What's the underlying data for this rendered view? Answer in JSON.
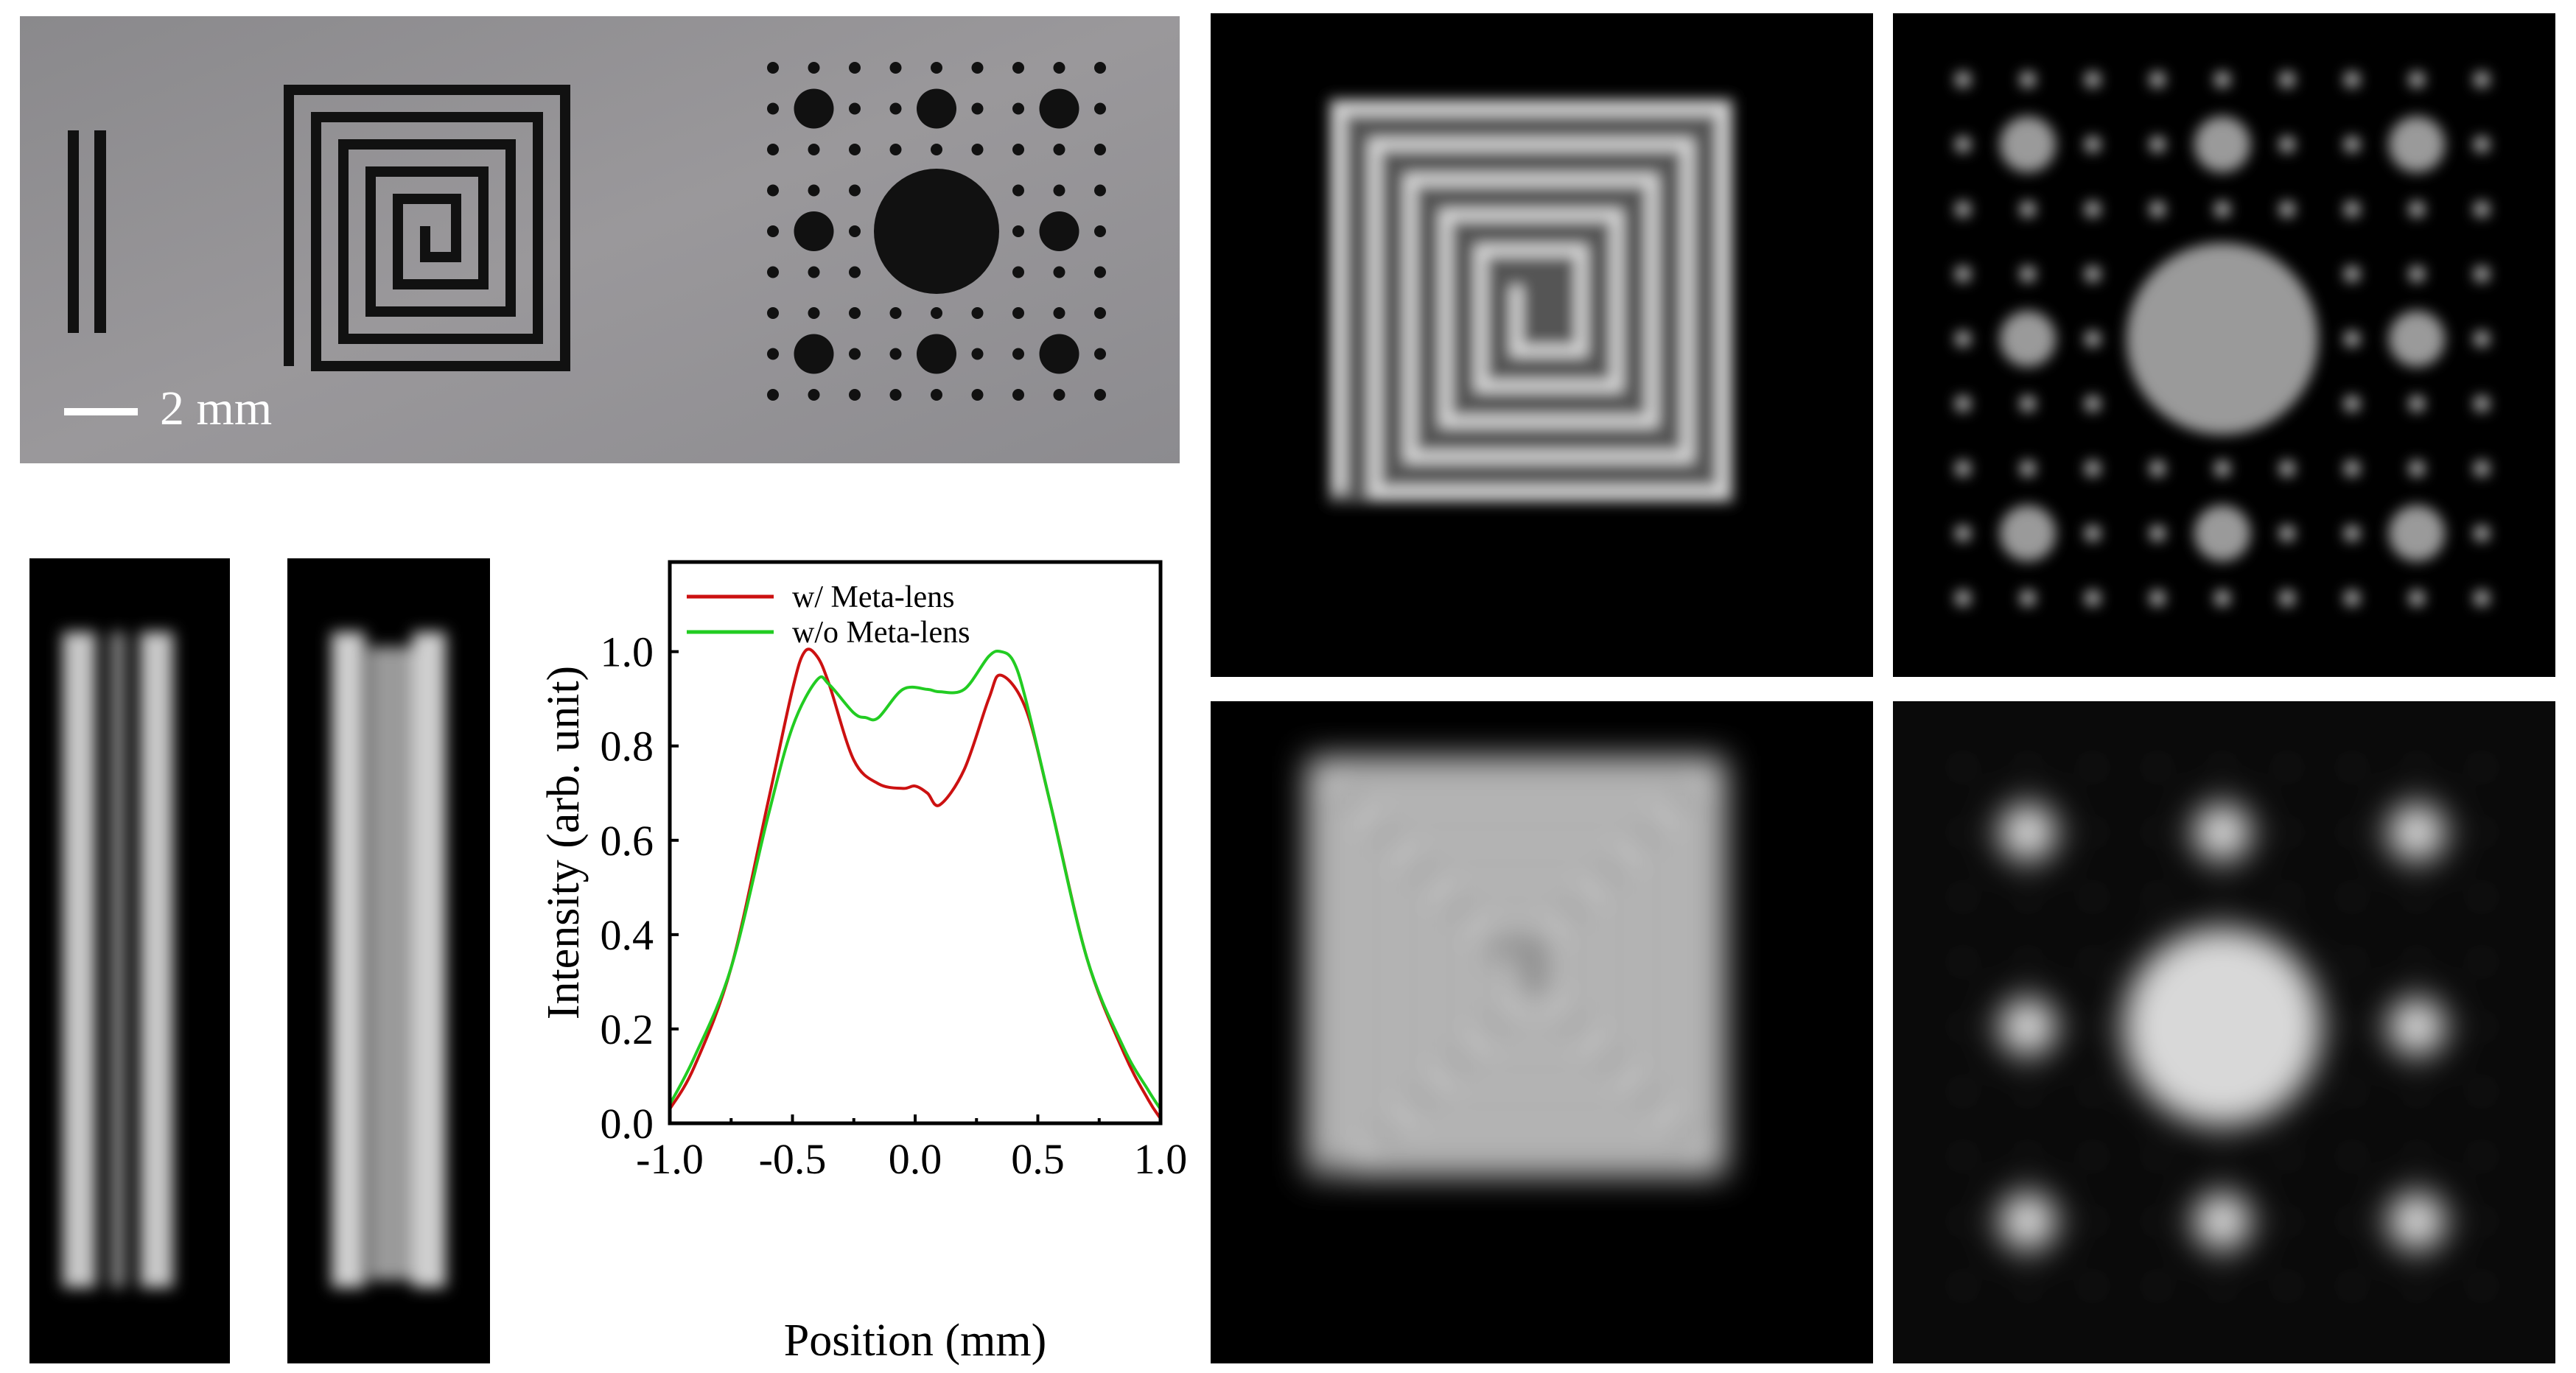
{
  "photo": {
    "scale_bar_label": "2 mm"
  },
  "chart_data": {
    "type": "line",
    "title": "",
    "xlabel": "Position (mm)",
    "ylabel": "Intensity (arb. unit)",
    "xlim": [
      -1.0,
      1.0
    ],
    "ylim": [
      0.0,
      1.19
    ],
    "xticks": [
      -1.0,
      -0.5,
      0.0,
      0.5,
      1.0
    ],
    "xtick_labels": [
      "-1.0",
      "-0.5",
      "0.0",
      "0.5",
      "1.0"
    ],
    "yticks": [
      0.0,
      0.2,
      0.4,
      0.6,
      0.8,
      1.0
    ],
    "ytick_labels": [
      "0.0",
      "0.2",
      "0.4",
      "0.6",
      "0.8",
      "1.0"
    ],
    "grid": false,
    "legend_position": "top-left",
    "series": [
      {
        "name": "w/ Meta-lens",
        "color": "#cc1111",
        "x": [
          -1.0,
          -0.9,
          -0.75,
          -0.6,
          -0.5,
          -0.45,
          -0.4,
          -0.35,
          -0.25,
          -0.15,
          -0.05,
          0.0,
          0.05,
          0.1,
          0.2,
          0.3,
          0.35,
          0.45,
          0.55,
          0.7,
          0.85,
          0.95,
          1.0
        ],
        "y": [
          0.03,
          0.12,
          0.33,
          0.68,
          0.92,
          1.0,
          0.99,
          0.93,
          0.77,
          0.72,
          0.71,
          0.715,
          0.7,
          0.675,
          0.75,
          0.9,
          0.95,
          0.88,
          0.68,
          0.35,
          0.15,
          0.05,
          0.01
        ]
      },
      {
        "name": "w/o Meta-lens",
        "color": "#22cc22",
        "x": [
          -1.0,
          -0.9,
          -0.75,
          -0.6,
          -0.5,
          -0.4,
          -0.35,
          -0.25,
          -0.2,
          -0.15,
          -0.05,
          0.05,
          0.1,
          0.2,
          0.3,
          0.35,
          0.4,
          0.45,
          0.55,
          0.7,
          0.85,
          0.95,
          1.0
        ],
        "y": [
          0.04,
          0.14,
          0.33,
          0.65,
          0.84,
          0.94,
          0.93,
          0.87,
          0.86,
          0.86,
          0.92,
          0.92,
          0.915,
          0.92,
          0.99,
          1.0,
          0.98,
          0.9,
          0.68,
          0.35,
          0.16,
          0.07,
          0.03
        ]
      }
    ]
  }
}
